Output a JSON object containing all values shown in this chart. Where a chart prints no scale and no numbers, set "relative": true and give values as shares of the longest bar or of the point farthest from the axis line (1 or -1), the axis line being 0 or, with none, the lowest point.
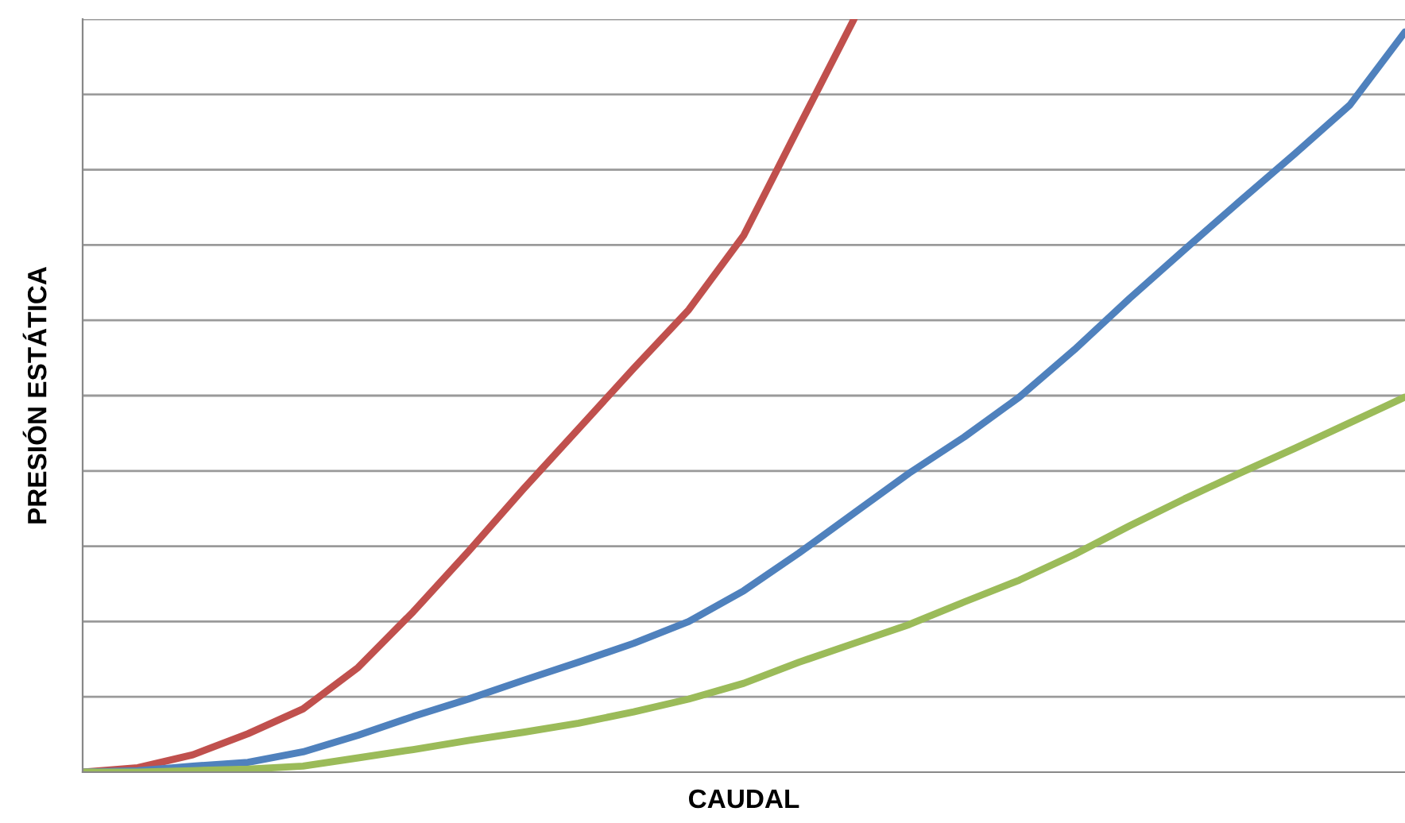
{
  "chart_data": {
    "type": "line",
    "relative": true,
    "xlabel": "CAUDAL",
    "ylabel": "PRESIÓN ESTÁTICA",
    "grid": "y",
    "legend": false,
    "marker": "none",
    "line_style": "solid",
    "categories": [
      null,
      null,
      null,
      null,
      null,
      null,
      null,
      null,
      null,
      null,
      null,
      null,
      null,
      null,
      null,
      null,
      null,
      null,
      null,
      null,
      null,
      null,
      null,
      null,
      null
    ],
    "series": [
      {
        "color": "#c0504d",
        "values": [
          0,
          0.006,
          0.023,
          0.051,
          0.084,
          0.139,
          0.213,
          0.293,
          0.376,
          0.456,
          0.536,
          0.614,
          0.713,
          0.857,
          1.0,
          null,
          null,
          null,
          null,
          null,
          null,
          null,
          null,
          null,
          null
        ]
      },
      {
        "color": "#4f81bd",
        "values": [
          0,
          0.002,
          0.008,
          0.013,
          0.027,
          0.049,
          0.074,
          0.097,
          0.122,
          0.146,
          0.171,
          0.2,
          0.241,
          0.291,
          0.344,
          0.397,
          0.445,
          0.498,
          0.561,
          0.629,
          0.694,
          0.758,
          0.821,
          0.886,
          0.983
        ]
      },
      {
        "color": "#9bbb59",
        "values": [
          0,
          0,
          0.002,
          0.004,
          0.008,
          0.019,
          0.03,
          0.042,
          0.053,
          0.065,
          0.08,
          0.097,
          0.118,
          0.146,
          0.171,
          0.196,
          0.226,
          0.255,
          0.289,
          0.327,
          0.363,
          0.397,
          0.43,
          0.464,
          0.498
        ]
      }
    ]
  }
}
